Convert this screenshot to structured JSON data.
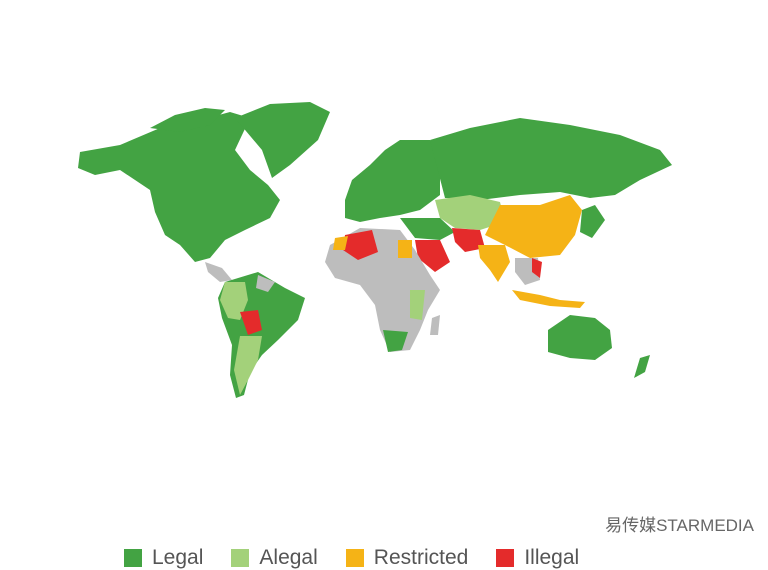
{
  "colors": {
    "legal": "#43a343",
    "alegal": "#a3d17a",
    "restricted": "#f5b316",
    "illegal": "#e42b2b",
    "no_data": "#bdbdbd"
  },
  "legend": [
    {
      "label": "Legal",
      "color": "#43a343"
    },
    {
      "label": "Alegal",
      "color": "#a3d17a"
    },
    {
      "label": "Restricted",
      "color": "#f5b316"
    },
    {
      "label": "Illegal",
      "color": "#e42b2b"
    }
  ],
  "watermark": "易传媒STARMEDIA"
}
